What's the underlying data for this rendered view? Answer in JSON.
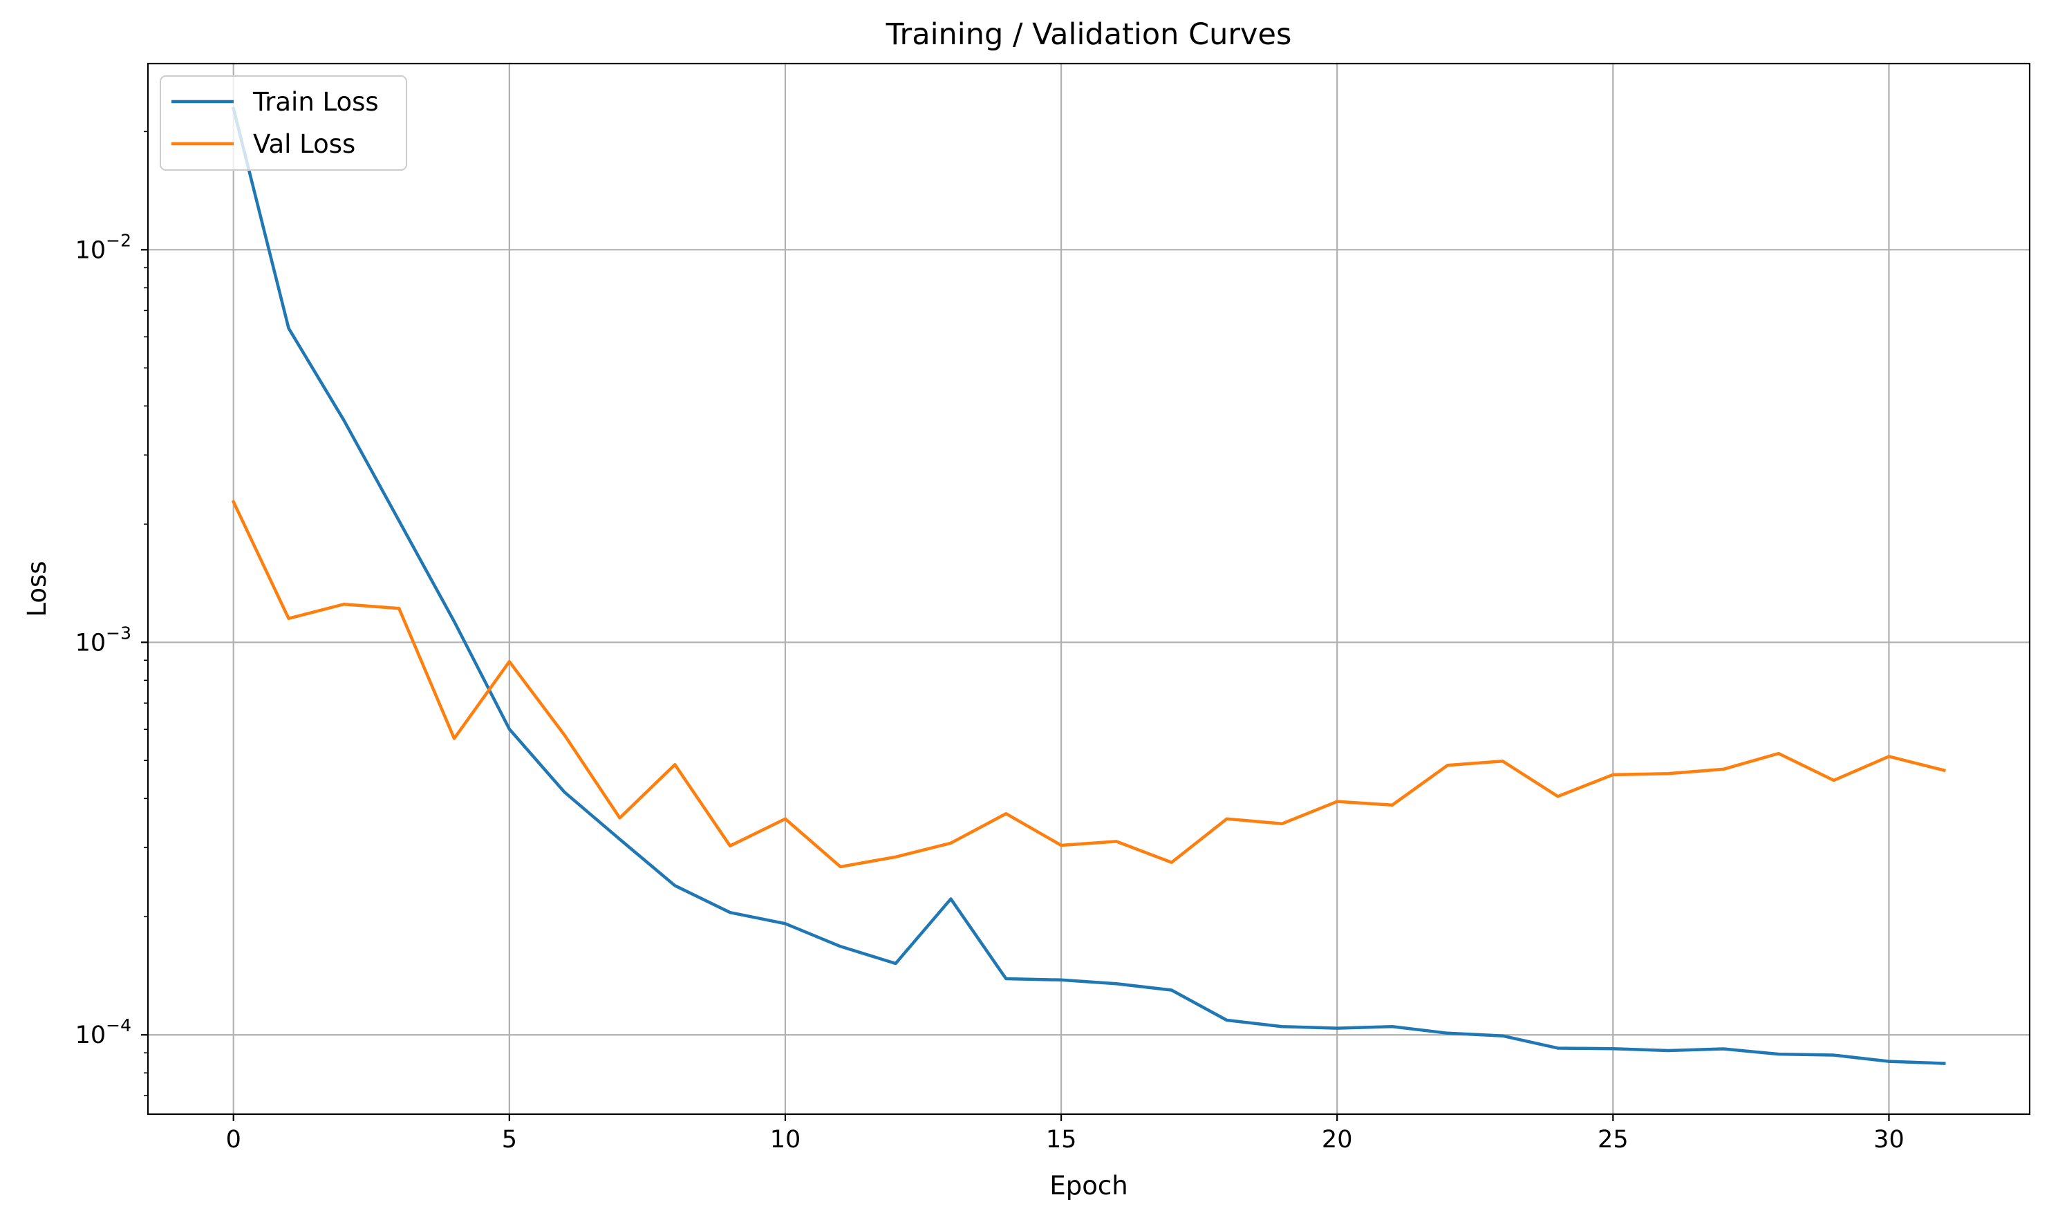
{
  "chart_data": {
    "type": "line",
    "title": "Training / Validation Curves",
    "xlabel": "Epoch",
    "ylabel": "Loss",
    "yscale": "log",
    "xlim": [
      -1.55,
      32.55
    ],
    "ylim": [
      6.28e-05,
      0.0298
    ],
    "grid": true,
    "legend": {
      "placement": "top-left"
    },
    "x_ticks": [
      0,
      5,
      10,
      15,
      20,
      25,
      30
    ],
    "y_ticks": [
      {
        "value": 0.0001,
        "base": "10",
        "exponent": "−4"
      },
      {
        "value": 0.001,
        "base": "10",
        "exponent": "−3"
      },
      {
        "value": 0.01,
        "base": "10",
        "exponent": "−2"
      }
    ],
    "x": [
      0,
      1,
      2,
      3,
      4,
      5,
      6,
      7,
      8,
      9,
      10,
      11,
      12,
      13,
      14,
      15,
      16,
      17,
      18,
      19,
      20,
      21,
      22,
      23,
      24,
      25,
      26,
      27,
      28,
      29,
      30,
      31
    ],
    "series": [
      {
        "name": "Train Loss",
        "color": "#1f77b4",
        "values": [
          0.0229,
          0.00631,
          0.00368,
          0.00204,
          0.00113,
          0.000601,
          0.000415,
          0.000315,
          0.00024,
          0.000205,
          0.000192,
          0.000168,
          0.000152,
          0.000222,
          0.000139,
          0.000138,
          0.000135,
          0.00013,
          0.000109,
          0.000105,
          0.000104,
          0.000105,
          0.000101,
          9.94e-05,
          9.25e-05,
          9.22e-05,
          9.12e-05,
          9.21e-05,
          8.93e-05,
          8.88e-05,
          8.56e-05,
          8.46e-05
        ]
      },
      {
        "name": "Val Loss",
        "color": "#ff7f0e",
        "values": [
          0.00228,
          0.00115,
          0.00125,
          0.00122,
          0.000569,
          0.000893,
          0.00058,
          0.000357,
          0.000488,
          0.000303,
          0.000355,
          0.000268,
          0.000284,
          0.000308,
          0.000366,
          0.000304,
          0.000311,
          0.000275,
          0.000355,
          0.000345,
          0.000393,
          0.000385,
          0.000486,
          0.000498,
          0.000405,
          0.00046,
          0.000463,
          0.000475,
          0.000521,
          0.000445,
          0.000512,
          0.000472
        ]
      }
    ]
  }
}
